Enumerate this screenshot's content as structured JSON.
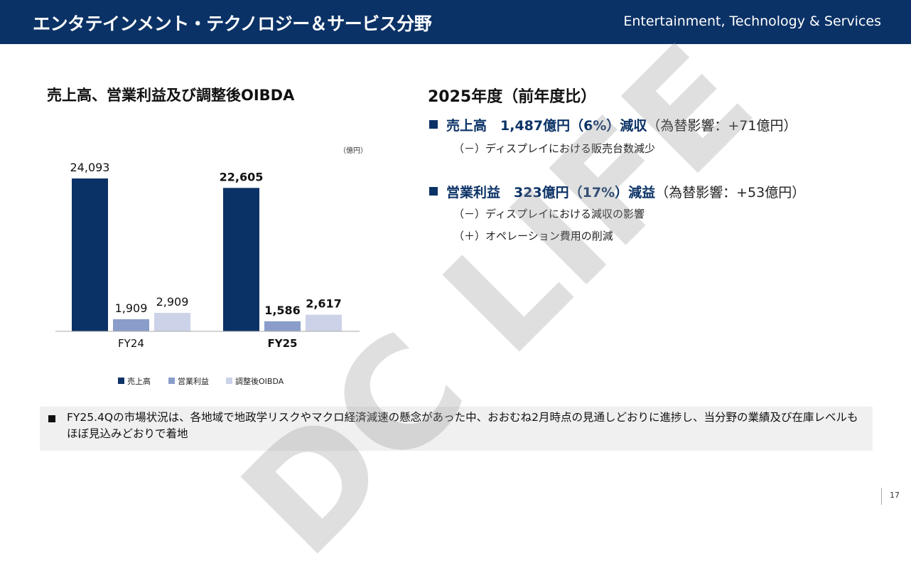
{
  "header": {
    "title": "エンタテインメント・テクノロジー＆サービス分野",
    "subtitle": "Entertainment, Technology & Services"
  },
  "chart_title": "売上高、営業利益及び調整後OIBDA",
  "chart_data": {
    "type": "bar",
    "unit": "（億円）",
    "categories": [
      "FY24",
      "FY25"
    ],
    "series": [
      {
        "name": "売上高",
        "values": [
          24093,
          22605
        ],
        "labels": [
          "24,093",
          "22,605"
        ],
        "color": "#0b3266"
      },
      {
        "name": "営業利益",
        "values": [
          1909,
          1586
        ],
        "labels": [
          "1,909",
          "1,586"
        ],
        "color": "#8a9dca"
      },
      {
        "name": "調整後OIBDA",
        "values": [
          2909,
          2617
        ],
        "labels": [
          "2,909",
          "2,617"
        ],
        "color": "#ccd3e8"
      }
    ],
    "ylim": [
      0,
      24093
    ],
    "bold_category": "FY25",
    "legend_position": "bottom"
  },
  "summary": {
    "title": "2025年度（前年度比）",
    "items": [
      {
        "highlight": "売上高　1,487億円（6%）減収",
        "fx": "（為替影響：+71億円）",
        "subs": [
          "（－）ディスプレイにおける販売台数減少"
        ]
      },
      {
        "highlight": "営業利益　323億円（17%）減益",
        "fx": "（為替影響：+53億円）",
        "subs": [
          "（－）ディスプレイにおける減収の影響",
          "（＋）オペレーション費用の削減"
        ]
      }
    ]
  },
  "note": "FY25.4Qの市場状況は、各地域で地政学リスクやマクロ経済減速の懸念があった中、おおむね2月時点の見通しどおりに進捗し、当分野の業績及び在庫レベルもほぼ見込みどおりで着地",
  "page_number": "17",
  "watermark": "DC LIFE"
}
